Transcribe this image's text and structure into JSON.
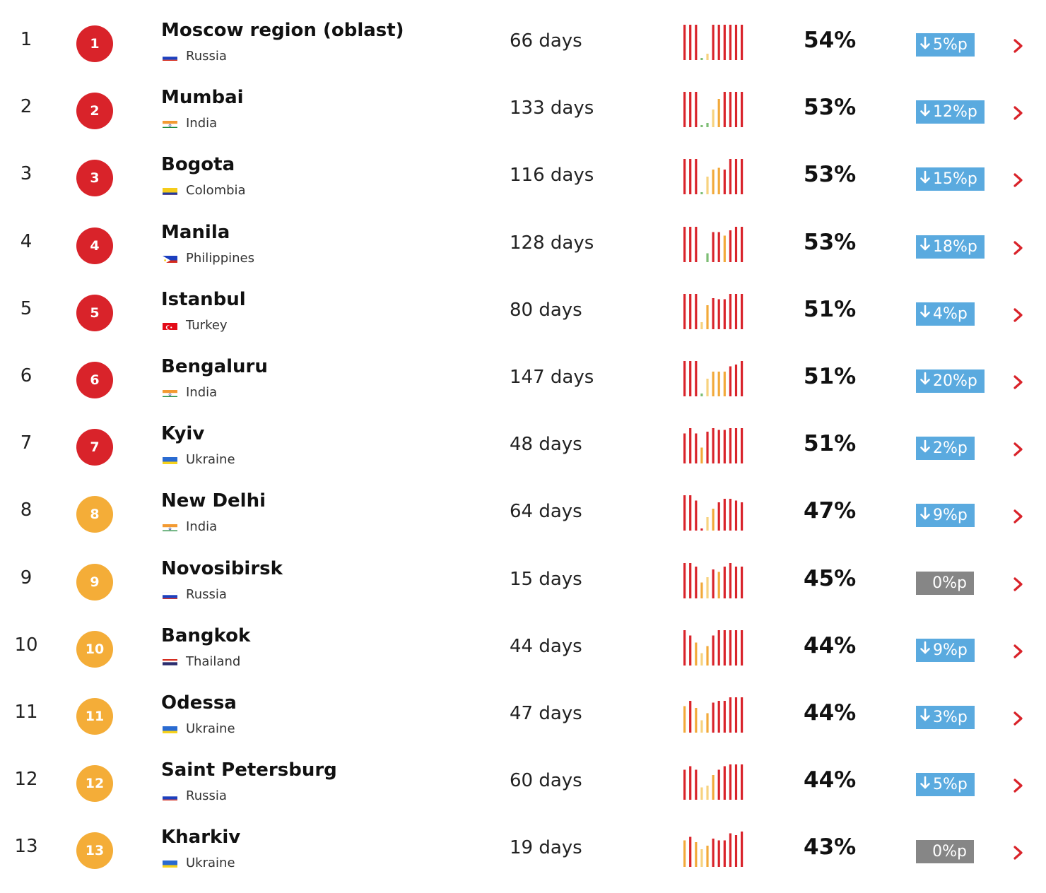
{
  "colors": {
    "red": "#d9232a",
    "orange": "#f4ad38",
    "bar_red": "#d9232a",
    "bar_orange": "#f2a93a",
    "bar_light": "#f7d27e",
    "bar_green": "#7dbd74",
    "badge_blue": "#5aaadf",
    "badge_gray": "#868686"
  },
  "rows": [
    {
      "rank": "1",
      "badge": "1",
      "tier": "red",
      "city": "Moscow region (oblast)",
      "country": "Russia",
      "flag": "russia",
      "days": "66 days",
      "pct": "54%",
      "change": "5%p",
      "trend": "down",
      "history": [
        1,
        1,
        1,
        0.05,
        0.18,
        1,
        1,
        1,
        1,
        1,
        1
      ],
      "history_colors": [
        "r",
        "r",
        "r",
        "g",
        "l",
        "r",
        "r",
        "r",
        "r",
        "r",
        "r"
      ]
    },
    {
      "rank": "2",
      "badge": "2",
      "tier": "red",
      "city": "Mumbai",
      "country": "India",
      "flag": "india",
      "days": "133 days",
      "pct": "53%",
      "change": "12%p",
      "trend": "down",
      "history": [
        1,
        1,
        1,
        0.03,
        0.12,
        0.5,
        0.8,
        1,
        1,
        1,
        1
      ],
      "history_colors": [
        "r",
        "r",
        "r",
        "g",
        "g",
        "l",
        "o",
        "r",
        "r",
        "r",
        "r"
      ]
    },
    {
      "rank": "3",
      "badge": "3",
      "tier": "red",
      "city": "Bogota",
      "country": "Colombia",
      "flag": "colombia",
      "days": "116 days",
      "pct": "53%",
      "change": "15%p",
      "trend": "down",
      "history": [
        1,
        1,
        1,
        0.05,
        0.5,
        0.7,
        0.75,
        0.7,
        1,
        1,
        1
      ],
      "history_colors": [
        "r",
        "r",
        "r",
        "g",
        "l",
        "o",
        "o",
        "r",
        "r",
        "r",
        "r"
      ]
    },
    {
      "rank": "4",
      "badge": "4",
      "tier": "red",
      "city": "Manila",
      "country": "Philippines",
      "flag": "philippines",
      "days": "128 days",
      "pct": "53%",
      "change": "18%p",
      "trend": "down",
      "history": [
        1,
        1,
        1,
        0,
        0.25,
        0.85,
        0.85,
        0.75,
        0.9,
        1,
        1
      ],
      "history_colors": [
        "r",
        "r",
        "r",
        "r",
        "g",
        "r",
        "r",
        "o",
        "r",
        "r",
        "r"
      ]
    },
    {
      "rank": "5",
      "badge": "5",
      "tier": "red",
      "city": "Istanbul",
      "country": "Turkey",
      "flag": "turkey",
      "days": "80 days",
      "pct": "51%",
      "change": "4%p",
      "trend": "down",
      "history": [
        1,
        1,
        1,
        0.2,
        0.68,
        0.88,
        0.85,
        0.85,
        1,
        1,
        1
      ],
      "history_colors": [
        "r",
        "r",
        "r",
        "l",
        "o",
        "r",
        "r",
        "r",
        "r",
        "r",
        "r"
      ]
    },
    {
      "rank": "6",
      "badge": "6",
      "tier": "red",
      "city": "Bengaluru",
      "country": "India",
      "flag": "india",
      "days": "147 days",
      "pct": "51%",
      "change": "20%p",
      "trend": "down",
      "history": [
        1,
        1,
        1,
        0.08,
        0.5,
        0.7,
        0.7,
        0.7,
        0.85,
        0.9,
        1
      ],
      "history_colors": [
        "r",
        "r",
        "r",
        "g",
        "l",
        "o",
        "o",
        "o",
        "r",
        "r",
        "r"
      ]
    },
    {
      "rank": "7",
      "badge": "7",
      "tier": "red",
      "city": "Kyiv",
      "country": "Ukraine",
      "flag": "ukraine",
      "days": "48 days",
      "pct": "51%",
      "change": "2%p",
      "trend": "down",
      "history": [
        0.85,
        1,
        0.85,
        0.45,
        0.9,
        1,
        0.95,
        0.95,
        1,
        1,
        1
      ],
      "history_colors": [
        "r",
        "r",
        "r",
        "o",
        "r",
        "r",
        "r",
        "r",
        "r",
        "r",
        "r"
      ]
    },
    {
      "rank": "8",
      "badge": "8",
      "tier": "orange",
      "city": "New Delhi",
      "country": "India",
      "flag": "india",
      "days": "64 days",
      "pct": "47%",
      "change": "9%p",
      "trend": "down",
      "history": [
        1,
        1,
        0.85,
        0.03,
        0.38,
        0.62,
        0.8,
        0.9,
        0.9,
        0.85,
        0.8
      ],
      "history_colors": [
        "r",
        "r",
        "r",
        "r",
        "l",
        "o",
        "r",
        "r",
        "r",
        "r",
        "r"
      ]
    },
    {
      "rank": "9",
      "badge": "9",
      "tier": "orange",
      "city": "Novosibirsk",
      "country": "Russia",
      "flag": "russia",
      "days": "15 days",
      "pct": "45%",
      "change": "0%p",
      "trend": "flat",
      "history": [
        1,
        1,
        0.9,
        0.45,
        0.6,
        0.82,
        0.75,
        0.9,
        1,
        0.9,
        0.9
      ],
      "history_colors": [
        "r",
        "r",
        "r",
        "o",
        "l",
        "r",
        "o",
        "r",
        "r",
        "r",
        "r"
      ]
    },
    {
      "rank": "10",
      "badge": "10",
      "tier": "orange",
      "city": "Bangkok",
      "country": "Thailand",
      "flag": "thailand",
      "days": "44 days",
      "pct": "44%",
      "change": "9%p",
      "trend": "down",
      "history": [
        1,
        0.85,
        0.65,
        0.35,
        0.55,
        0.85,
        1,
        1,
        1,
        1,
        1
      ],
      "history_colors": [
        "r",
        "r",
        "o",
        "l",
        "o",
        "r",
        "r",
        "r",
        "r",
        "r",
        "r"
      ]
    },
    {
      "rank": "11",
      "badge": "11",
      "tier": "orange",
      "city": "Odessa",
      "country": "Ukraine",
      "flag": "ukraine",
      "days": "47 days",
      "pct": "44%",
      "change": "3%p",
      "trend": "down",
      "history": [
        0.75,
        0.9,
        0.7,
        0.35,
        0.55,
        0.85,
        0.9,
        0.9,
        1,
        1,
        1
      ],
      "history_colors": [
        "o",
        "r",
        "o",
        "l",
        "o",
        "r",
        "r",
        "r",
        "r",
        "r",
        "r"
      ]
    },
    {
      "rank": "12",
      "badge": "12",
      "tier": "orange",
      "city": "Saint Petersburg",
      "country": "Russia",
      "flag": "russia",
      "days": "60 days",
      "pct": "44%",
      "change": "5%p",
      "trend": "down",
      "history": [
        0.85,
        0.95,
        0.85,
        0.35,
        0.4,
        0.7,
        0.85,
        0.95,
        1,
        1,
        1
      ],
      "history_colors": [
        "r",
        "r",
        "r",
        "l",
        "l",
        "o",
        "r",
        "r",
        "r",
        "r",
        "r"
      ]
    },
    {
      "rank": "13",
      "badge": "13",
      "tier": "orange",
      "city": "Kharkiv",
      "country": "Ukraine",
      "flag": "ukraine",
      "days": "19 days",
      "pct": "43%",
      "change": "0%p",
      "trend": "flat",
      "history": [
        0.75,
        0.85,
        0.7,
        0.5,
        0.6,
        0.8,
        0.75,
        0.75,
        0.95,
        0.9,
        1
      ],
      "history_colors": [
        "o",
        "r",
        "o",
        "l",
        "o",
        "r",
        "r",
        "r",
        "r",
        "r",
        "r"
      ]
    }
  ]
}
